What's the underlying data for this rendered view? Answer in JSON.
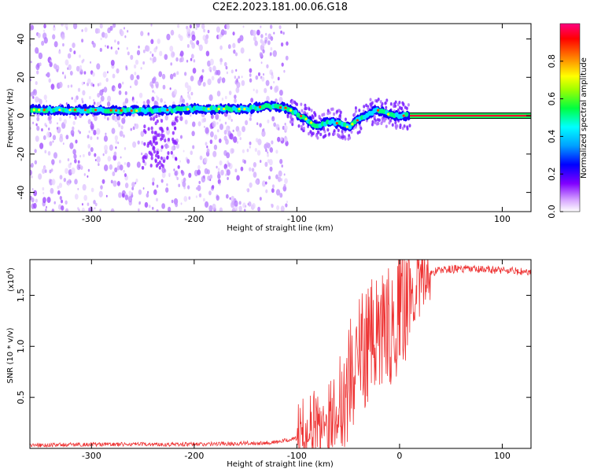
{
  "title": "C2E2.2023.181.00.06.G18",
  "chart_data": [
    {
      "type": "heatmap",
      "xlabel": "Height of straight line (km)",
      "ylabel": "Frequency (Hz)",
      "xlim": [
        -360,
        128
      ],
      "ylim": [
        -50,
        48
      ],
      "x_ticks": [
        -300,
        -200,
        -100,
        100
      ],
      "x_tick_labels": [
        "-300",
        "-200",
        "-100",
        "100"
      ],
      "y_ticks": [
        -40,
        -20,
        0,
        20,
        40
      ],
      "y_tick_labels": [
        "-40",
        "-20",
        "0",
        "20",
        "40"
      ],
      "colorbar": {
        "label": "Normalized spectral amplitude",
        "range": [
          0,
          1
        ],
        "ticks": [
          0.0,
          0.2,
          0.4,
          0.6,
          0.8
        ],
        "tick_labels": [
          "0.0",
          "0.2",
          "0.4",
          "0.6",
          "0.8"
        ]
      },
      "ridge": {
        "x": [
          -360,
          -300,
          -250,
          -200,
          -150,
          -130,
          -110,
          -90,
          -80,
          -70,
          -60,
          -50,
          -40,
          -30,
          -20,
          -10,
          0,
          128
        ],
        "y": [
          3,
          3,
          2.5,
          3.5,
          3.5,
          5,
          4,
          -2,
          -6,
          -3,
          -4,
          -6,
          -2,
          1,
          3,
          0.5,
          0,
          0
        ]
      },
      "constant_signal": {
        "x_start": 10,
        "x_end": 128,
        "y": 0
      }
    },
    {
      "type": "line",
      "xlabel": "Height of straight line (km)",
      "ylabel": "SNR (10 * v/v)",
      "scale_label": "(x10",
      "scale_exp": "4",
      "scale_close": ")",
      "xlim": [
        -360,
        128
      ],
      "ylim": [
        0,
        1.85
      ],
      "x_ticks": [
        -300,
        -200,
        -100,
        0,
        100
      ],
      "x_tick_labels": [
        "-300",
        "-200",
        "-100",
        "0",
        "100"
      ],
      "y_ticks": [
        0.5,
        1.0,
        1.5
      ],
      "y_tick_labels": [
        "0.5",
        "1.0",
        "1.5"
      ],
      "color": "#ee3333",
      "envelope": {
        "x": [
          -360,
          -300,
          -200,
          -150,
          -120,
          -100,
          -80,
          -70,
          -60,
          -50,
          -40,
          -30,
          -20,
          -10,
          0,
          10,
          20,
          30,
          40,
          60,
          80,
          100,
          128
        ],
        "y": [
          0.03,
          0.04,
          0.04,
          0.05,
          0.06,
          0.1,
          0.25,
          0.3,
          0.4,
          0.65,
          0.9,
          1.05,
          1.1,
          1.2,
          1.35,
          1.5,
          1.62,
          1.72,
          1.75,
          1.76,
          1.75,
          1.75,
          1.72
        ]
      }
    }
  ]
}
